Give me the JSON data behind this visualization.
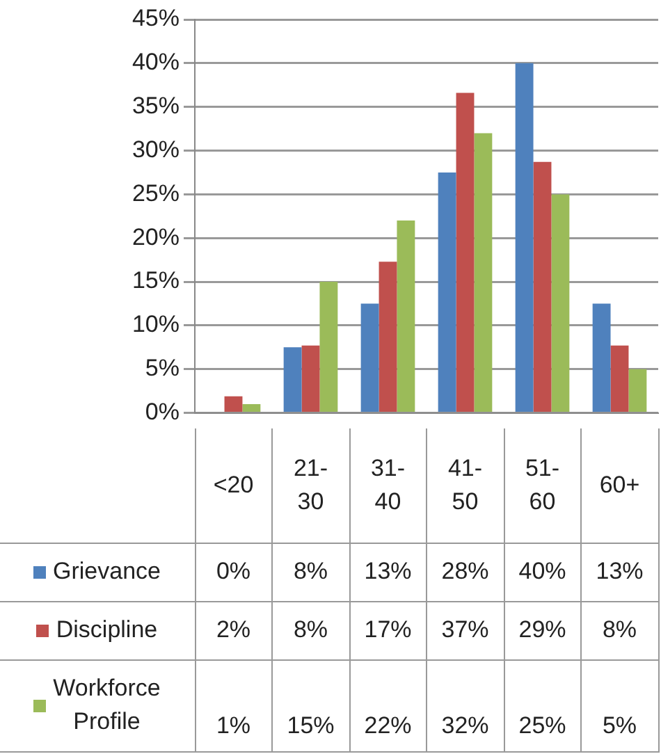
{
  "chart_data": {
    "type": "bar",
    "categories": [
      "<20",
      "21-\n30",
      "31-\n40",
      "41-\n50",
      "51-\n60",
      "60+"
    ],
    "series": [
      {
        "name": "Grievance",
        "color": "#4f81bd",
        "values": [
          0,
          7.5,
          12.5,
          27.5,
          40,
          12.5
        ],
        "value_labels": [
          "0%",
          "8%",
          "13%",
          "28%",
          "40%",
          "13%"
        ]
      },
      {
        "name": "Discipline",
        "color": "#c0504d",
        "values": [
          1.9,
          7.7,
          17.3,
          36.6,
          28.7,
          7.7
        ],
        "value_labels": [
          "2%",
          "8%",
          "17%",
          "37%",
          "29%",
          "8%"
        ]
      },
      {
        "name": "Workforce\nProfile",
        "color": "#9bbb59",
        "values": [
          1,
          15,
          22,
          32,
          25,
          5
        ],
        "value_labels": [
          "1%",
          "15%",
          "22%",
          "32%",
          "25%",
          "5%"
        ]
      }
    ],
    "ylim": [
      0,
      45
    ],
    "yticks": [
      {
        "value": 0,
        "label": "0%"
      },
      {
        "value": 5,
        "label": "5%"
      },
      {
        "value": 10,
        "label": "10%"
      },
      {
        "value": 15,
        "label": "15%"
      },
      {
        "value": 20,
        "label": "20%"
      },
      {
        "value": 25,
        "label": "25%"
      },
      {
        "value": 30,
        "label": "30%"
      },
      {
        "value": 35,
        "label": "35%"
      },
      {
        "value": 40,
        "label": "40%"
      },
      {
        "value": 45,
        "label": "45%"
      }
    ],
    "grid": "y",
    "legend": "bottom left"
  }
}
